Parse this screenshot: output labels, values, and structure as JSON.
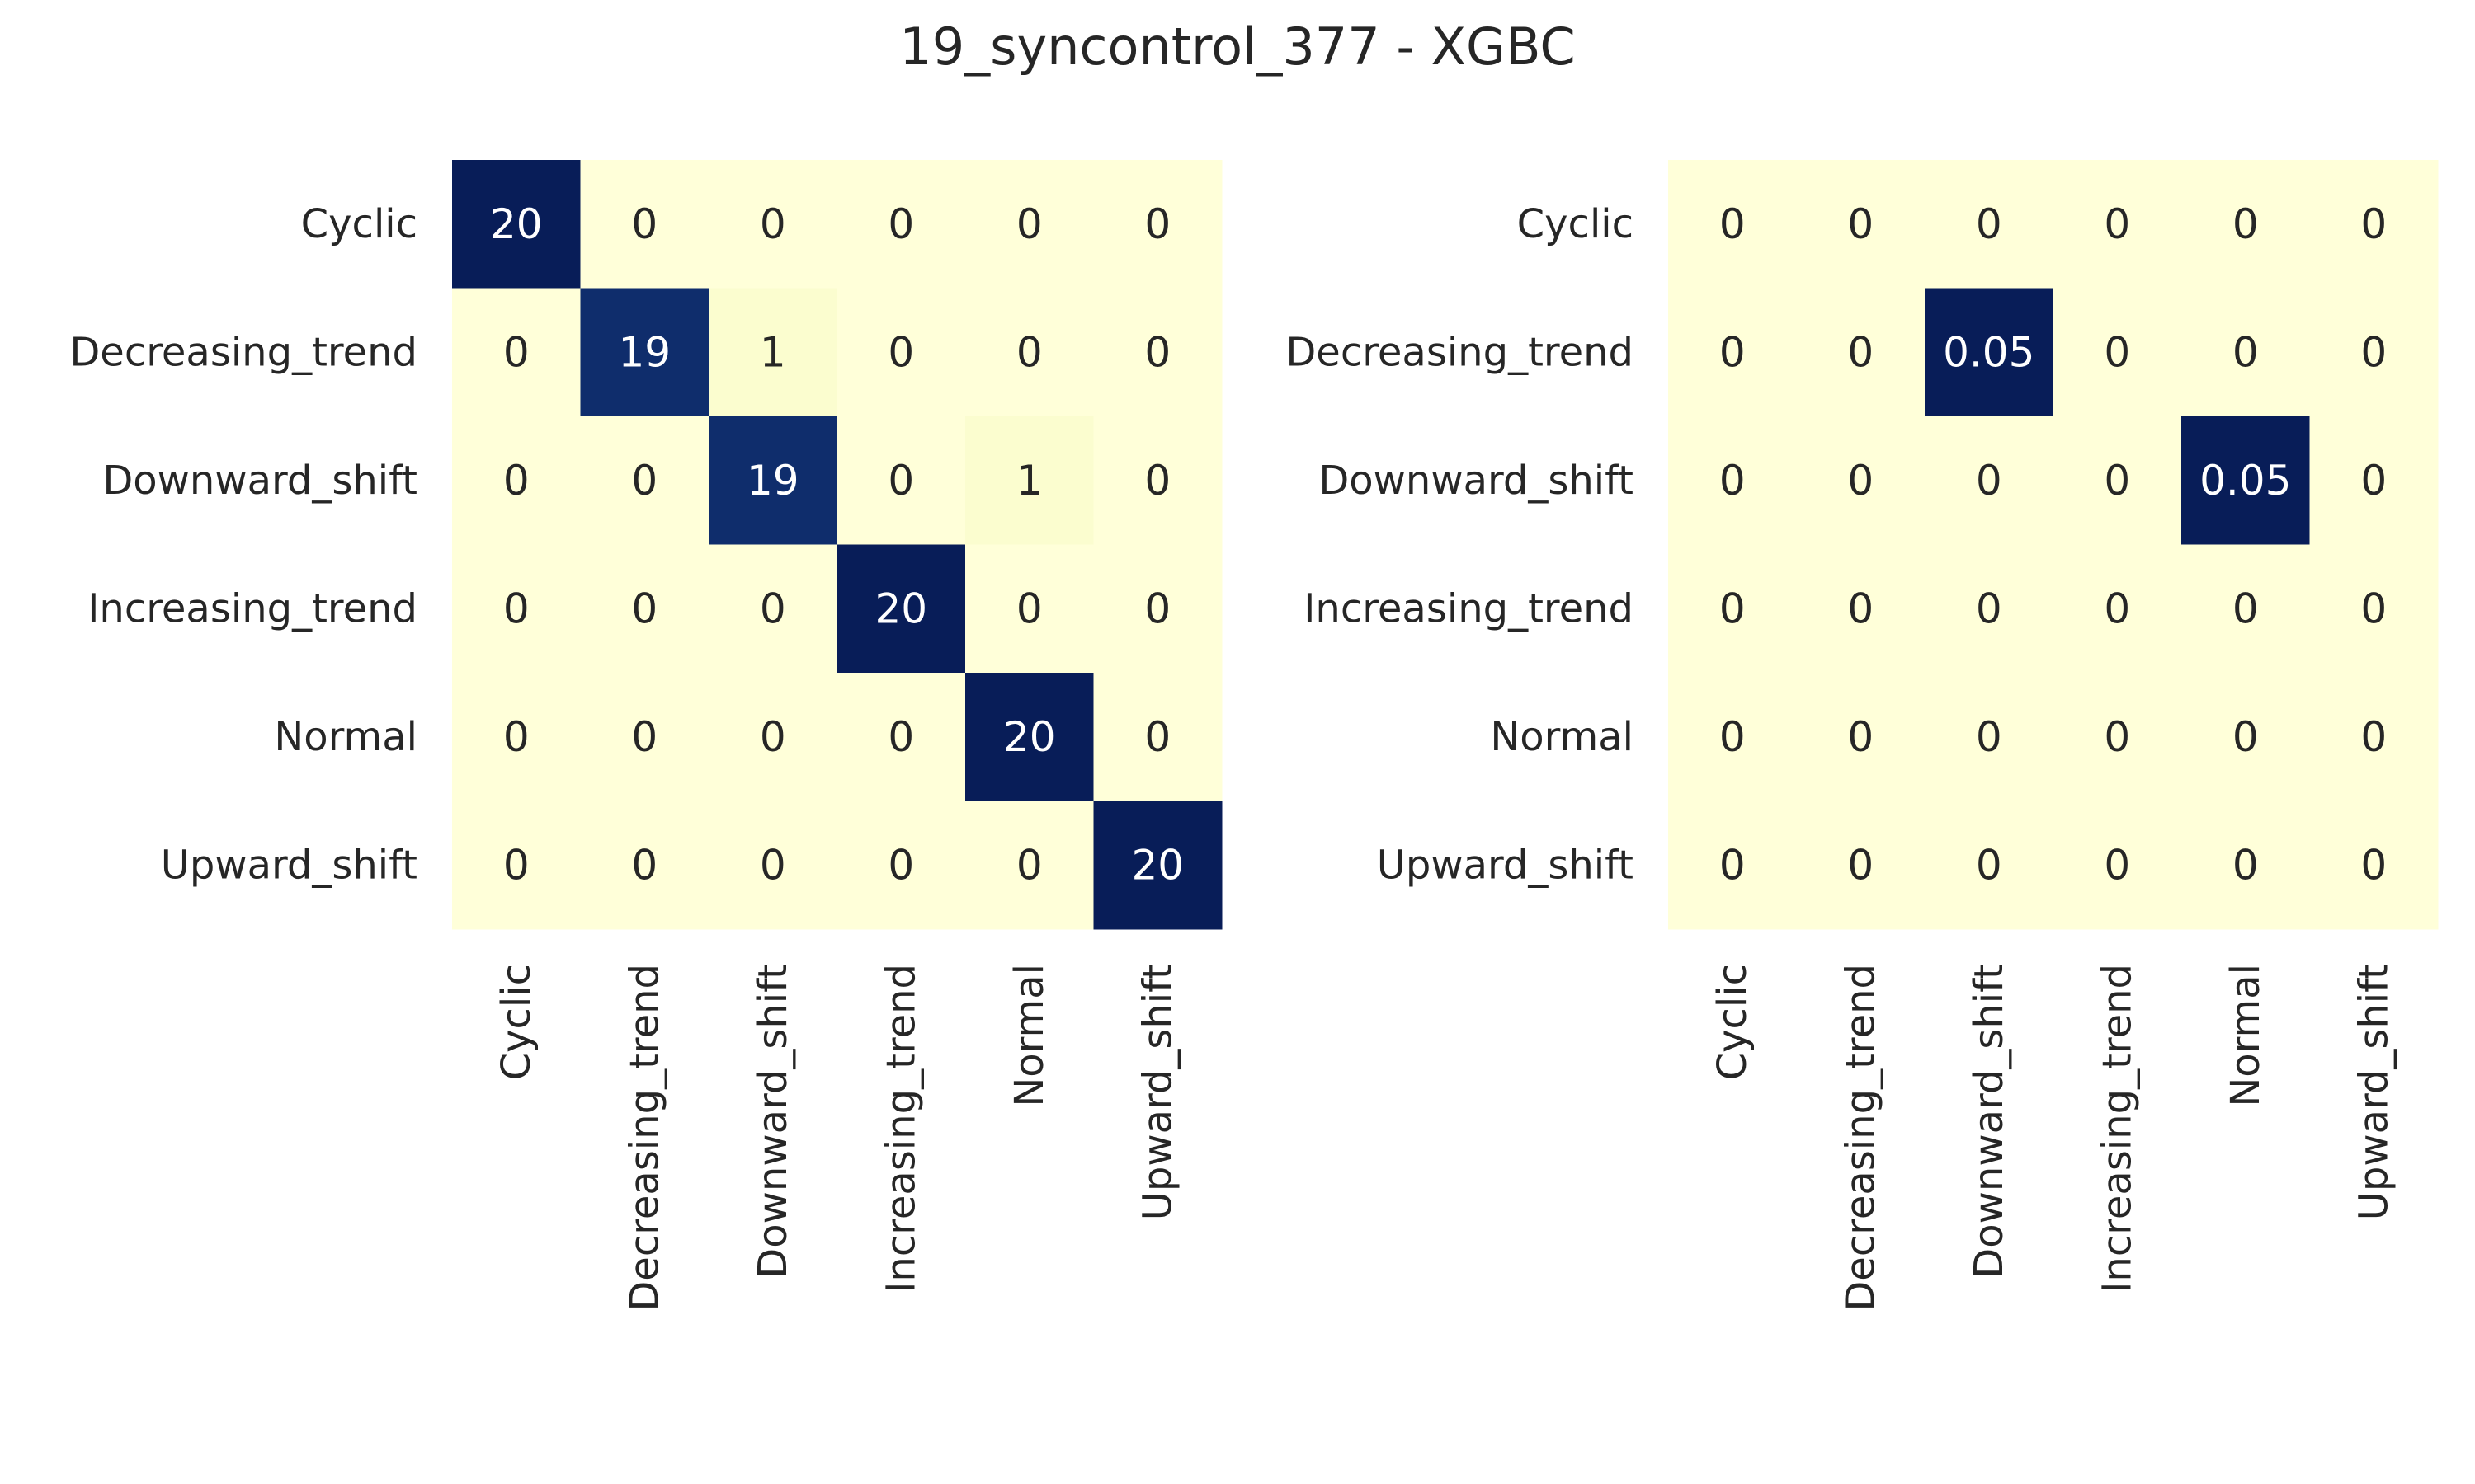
{
  "title": "19_syncontrol_377 - XGBC",
  "colors": {
    "low": "#ffffd9",
    "mid1": "#edf8b1",
    "mid2": "#c7e9b4",
    "mid3": "#41b6c4",
    "mid4": "#225ea8",
    "high": "#081d58",
    "text_dark": "#262626",
    "text_light": "#ffffff"
  },
  "chart_data": [
    {
      "type": "heatmap",
      "title": "",
      "xlabel": "",
      "ylabel": "",
      "grid": false,
      "categories_y": [
        "Cyclic",
        "Decreasing_trend",
        "Downward_shift",
        "Increasing_trend",
        "Normal",
        "Upward_shift"
      ],
      "categories_x": [
        "Cyclic",
        "Decreasing_trend",
        "Downward_shift",
        "Increasing_trend",
        "Normal",
        "Upward_shift"
      ],
      "values": [
        [
          20,
          0,
          0,
          0,
          0,
          0
        ],
        [
          0,
          19,
          1,
          0,
          0,
          0
        ],
        [
          0,
          0,
          19,
          0,
          1,
          0
        ],
        [
          0,
          0,
          0,
          20,
          0,
          0
        ],
        [
          0,
          0,
          0,
          0,
          20,
          0
        ],
        [
          0,
          0,
          0,
          0,
          0,
          20
        ]
      ],
      "labels": [
        [
          "20",
          "0",
          "0",
          "0",
          "0",
          "0"
        ],
        [
          "0",
          "19",
          "1",
          "0",
          "0",
          "0"
        ],
        [
          "0",
          "0",
          "19",
          "0",
          "1",
          "0"
        ],
        [
          "0",
          "0",
          "0",
          "20",
          "0",
          "0"
        ],
        [
          "0",
          "0",
          "0",
          "0",
          "20",
          "0"
        ],
        [
          "0",
          "0",
          "0",
          "0",
          "0",
          "20"
        ]
      ],
      "vmin": 0,
      "vmax": 20
    },
    {
      "type": "heatmap",
      "title": "",
      "xlabel": "",
      "ylabel": "",
      "grid": false,
      "categories_y": [
        "Cyclic",
        "Decreasing_trend",
        "Downward_shift",
        "Increasing_trend",
        "Normal",
        "Upward_shift"
      ],
      "categories_x": [
        "Cyclic",
        "Decreasing_trend",
        "Downward_shift",
        "Increasing_trend",
        "Normal",
        "Upward_shift"
      ],
      "values": [
        [
          0,
          0,
          0,
          0,
          0,
          0
        ],
        [
          0,
          0,
          0.05,
          0,
          0,
          0
        ],
        [
          0,
          0,
          0,
          0,
          0.05,
          0
        ],
        [
          0,
          0,
          0,
          0,
          0,
          0
        ],
        [
          0,
          0,
          0,
          0,
          0,
          0
        ],
        [
          0,
          0,
          0,
          0,
          0,
          0
        ]
      ],
      "labels": [
        [
          "0",
          "0",
          "0",
          "0",
          "0",
          "0"
        ],
        [
          "0",
          "0",
          "0.05",
          "0",
          "0",
          "0"
        ],
        [
          "0",
          "0",
          "0",
          "0",
          "0.05",
          "0"
        ],
        [
          "0",
          "0",
          "0",
          "0",
          "0",
          "0"
        ],
        [
          "0",
          "0",
          "0",
          "0",
          "0",
          "0"
        ],
        [
          "0",
          "0",
          "0",
          "0",
          "0",
          "0"
        ]
      ],
      "vmin": 0,
      "vmax": 0.05
    }
  ]
}
